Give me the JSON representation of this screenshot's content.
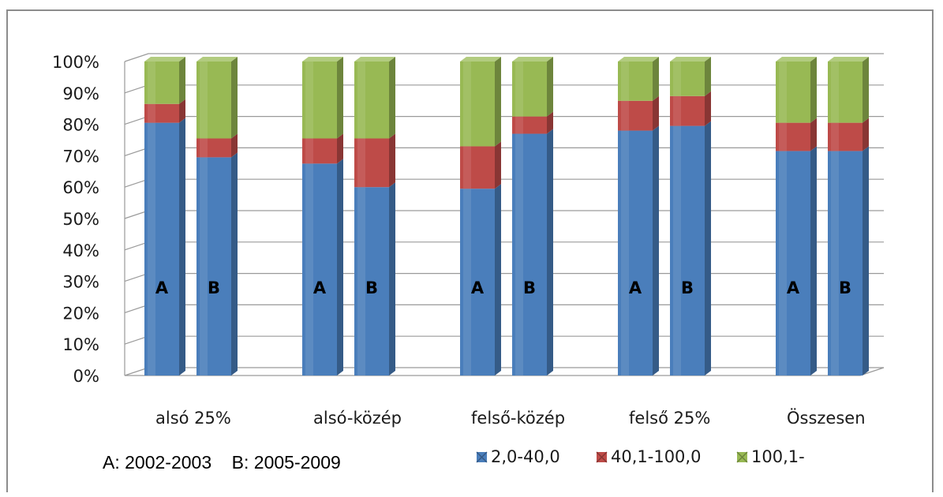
{
  "chart_data": {
    "type": "bar",
    "stacked": true,
    "percent": true,
    "three_d": true,
    "title": "",
    "xlabel": "",
    "ylabel": "",
    "ylim": [
      0,
      100
    ],
    "y_ticks": [
      "0%",
      "10%",
      "20%",
      "30%",
      "40%",
      "50%",
      "60%",
      "70%",
      "80%",
      "90%",
      "100%"
    ],
    "grid": true,
    "categories": [
      "alsó 25%",
      "alsó-közép",
      "felső-közép",
      "felső 25%",
      "Összesen"
    ],
    "sub_bars": [
      "A",
      "B"
    ],
    "note": "A: 2002-2003    B: 2005-2009",
    "legend_position": "bottom-right",
    "series": [
      {
        "name": "2,0-40,0",
        "color": "#4a7ebb",
        "values": {
          "A": [
            80.5,
            67.5,
            59.5,
            78,
            71.5
          ],
          "B": [
            69.5,
            60,
            77,
            79.5,
            71.5
          ]
        }
      },
      {
        "name": "40,1-100,0",
        "color": "#be4b48",
        "values": {
          "A": [
            6,
            8,
            13.5,
            9.5,
            9
          ],
          "B": [
            6,
            15.5,
            5.5,
            9.5,
            9
          ]
        }
      },
      {
        "name": "100,1-",
        "color": "#98b954",
        "values": {
          "A": [
            13.5,
            24.5,
            27,
            12.5,
            19.5
          ],
          "B": [
            24.5,
            24.5,
            17.5,
            11,
            19.5
          ]
        }
      }
    ]
  }
}
